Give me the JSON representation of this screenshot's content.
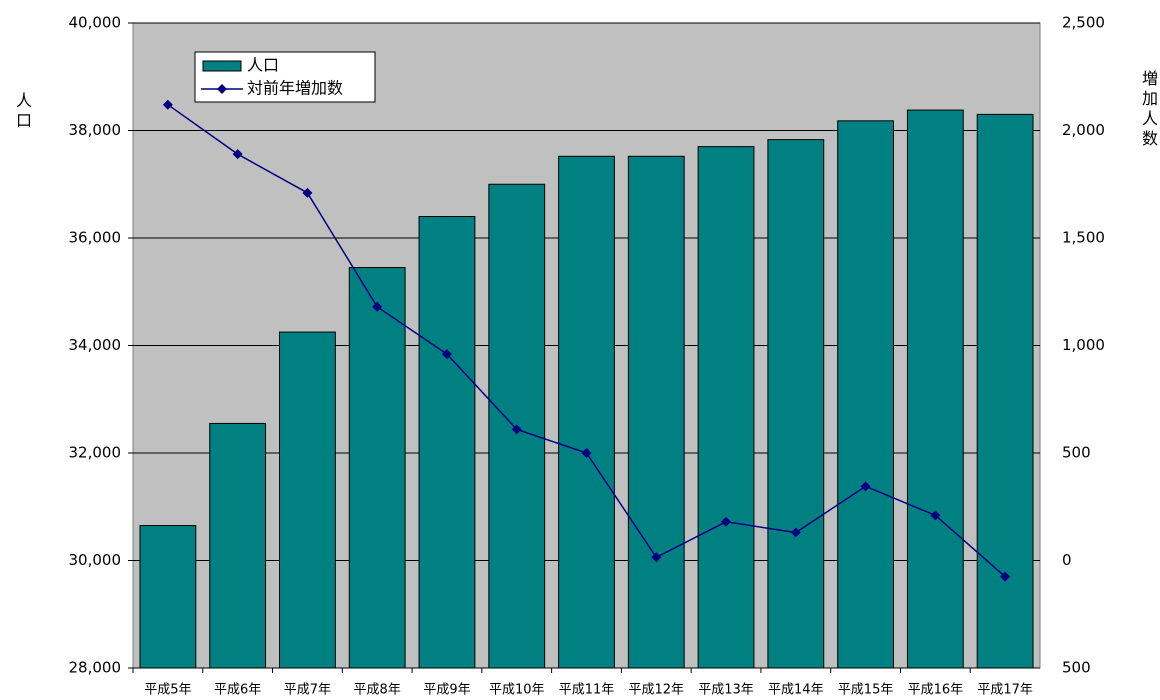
{
  "chart_data": {
    "type": "bar_line",
    "categories": [
      "平成5年",
      "平成6年",
      "平成7年",
      "平成8年",
      "平成9年",
      "平成10年",
      "平成11年",
      "平成12年",
      "平成13年",
      "平成14年",
      "平成15年",
      "平成16年",
      "平成17年"
    ],
    "y_label": "人口",
    "y2_label": "増加人数",
    "series": [
      {
        "name": "人口",
        "type": "bar",
        "color": "#008080",
        "values": [
          30650,
          32550,
          34250,
          35450,
          36400,
          37000,
          37520,
          37520,
          37700,
          37830,
          38180,
          38380,
          38300
        ]
      },
      {
        "name": "対前年増加数",
        "type": "line",
        "axis": "y2",
        "color": "#000080",
        "values": [
          2120,
          1890,
          1710,
          1180,
          960,
          610,
          500,
          15,
          180,
          130,
          345,
          210,
          -75
        ]
      }
    ],
    "ylim": [
      28000,
      40000
    ],
    "yticks": [
      {
        "value": 28000,
        "label": "28,000"
      },
      {
        "value": 30000,
        "label": "30,000"
      },
      {
        "value": 32000,
        "label": "32,000"
      },
      {
        "value": 34000,
        "label": "34,000"
      },
      {
        "value": 36000,
        "label": "36,000"
      },
      {
        "value": 38000,
        "label": "38,000"
      },
      {
        "value": 40000,
        "label": "40,000"
      }
    ],
    "y2lim": [
      -500,
      2500
    ],
    "y2ticks": [
      {
        "value": -500,
        "label": "500"
      },
      0,
      500,
      {
        "value": 1000,
        "label": "1,000"
      },
      {
        "value": 1500,
        "label": "1,500"
      },
      {
        "value": 2000,
        "label": "2,000"
      },
      {
        "value": 2500,
        "label": "2,500"
      }
    ],
    "negative_tick_color": "#ff0000",
    "plot_background": "#c0c0c0",
    "grid": true,
    "legend": "upper left"
  }
}
